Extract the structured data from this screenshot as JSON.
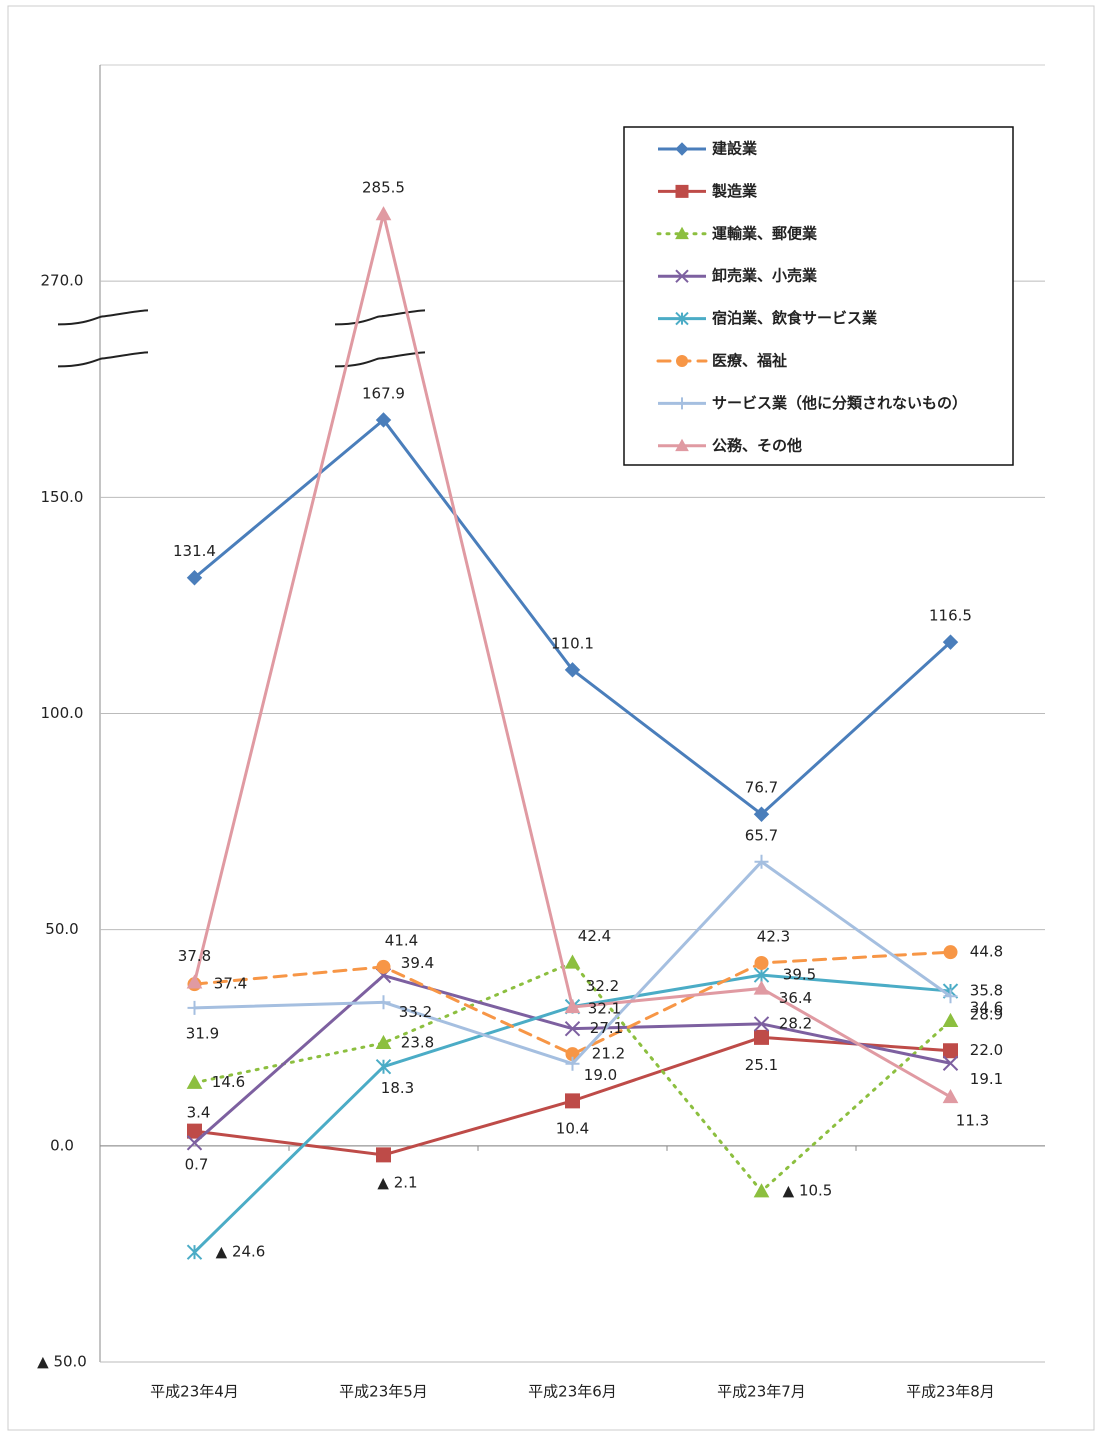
{
  "chart_data": {
    "type": "line",
    "categories": [
      "平成23年4月",
      "平成23年5月",
      "平成23年6月",
      "平成23年7月",
      "平成23年8月"
    ],
    "ylim": [
      -50,
      320
    ],
    "y_break": [
      190,
      260
    ],
    "yticks": [
      {
        "value": -50,
        "label": "▲ 50.0"
      },
      {
        "value": 0,
        "label": "0.0"
      },
      {
        "value": 50,
        "label": "50.0"
      },
      {
        "value": 100,
        "label": "100.0"
      },
      {
        "value": 150,
        "label": "150.0"
      },
      {
        "value": 270,
        "label": "270.0"
      }
    ],
    "grid": true,
    "legend": "upper right",
    "series": [
      {
        "name": "建設業",
        "color": "#4a7ebb",
        "marker": "diamond",
        "dash": "solid",
        "values": [
          131.4,
          167.9,
          110.1,
          76.7,
          116.5
        ],
        "value_labels": [
          "131.4",
          "167.9",
          "110.1",
          "76.7",
          "116.5"
        ]
      },
      {
        "name": "製造業",
        "color": "#be4b48",
        "marker": "square",
        "dash": "solid",
        "values": [
          3.4,
          -2.1,
          10.4,
          25.1,
          22.0
        ],
        "value_labels": [
          "3.4",
          "▲ 2.1",
          "10.4",
          "25.1",
          "22.0"
        ]
      },
      {
        "name": "運輸業、郵便業",
        "color": "#8cbf3f",
        "marker": "triangle",
        "dash": "dotted",
        "values": [
          14.6,
          23.8,
          42.4,
          -10.5,
          28.9
        ],
        "value_labels": [
          "14.6",
          "23.8",
          "42.4",
          "▲ 10.5",
          "28.9"
        ]
      },
      {
        "name": "卸売業、小売業",
        "color": "#7d60a0",
        "marker": "x",
        "dash": "solid",
        "values": [
          0.7,
          39.4,
          27.1,
          28.2,
          19.1
        ],
        "value_labels": [
          "0.7",
          "39.4",
          "27.1",
          "28.2",
          "19.1"
        ]
      },
      {
        "name": "宿泊業、飲食サービス業",
        "color": "#4bacc6",
        "marker": "star",
        "dash": "solid",
        "values": [
          -24.6,
          18.3,
          32.2,
          39.5,
          35.8
        ],
        "value_labels": [
          "▲ 24.6",
          "18.3",
          "32.2",
          "39.5",
          "35.8"
        ]
      },
      {
        "name": "医療、福祉",
        "color": "#f79646",
        "marker": "circle",
        "dash": "dashed",
        "values": [
          37.4,
          41.4,
          21.2,
          42.3,
          44.8
        ],
        "value_labels": [
          "37.4",
          "41.4",
          "21.2",
          "42.3",
          "44.8"
        ]
      },
      {
        "name": "サービス業（他に分類されないもの）",
        "color": "#a5bfe0",
        "marker": "plus",
        "dash": "solid",
        "values": [
          31.9,
          33.2,
          19.0,
          65.7,
          34.6
        ],
        "value_labels": [
          "31.9",
          "33.2",
          "19.0",
          "65.7",
          "34.6"
        ]
      },
      {
        "name": "公務、その他",
        "color": "#e09aa2",
        "marker": "triangle",
        "dash": "solid",
        "values": [
          37.8,
          285.5,
          32.1,
          36.4,
          11.3
        ],
        "value_labels": [
          "37.8",
          "285.5",
          "32.1",
          "36.4",
          "11.3"
        ]
      }
    ]
  }
}
